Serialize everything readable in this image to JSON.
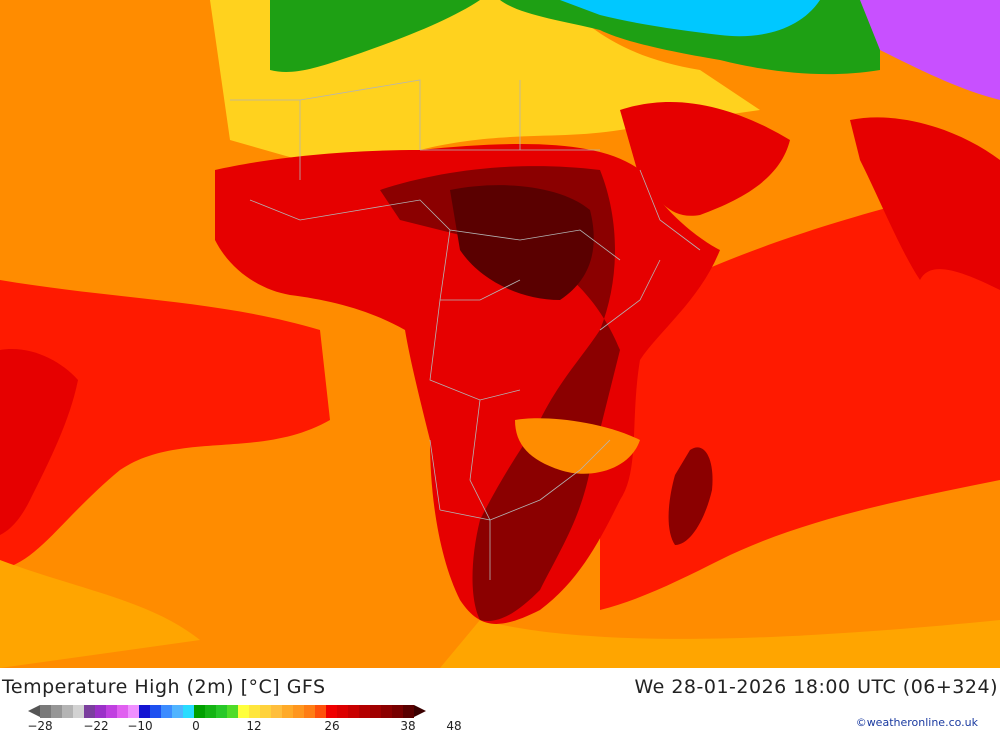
{
  "map": {
    "region": "Africa",
    "colors": {
      "ocean_warm": "#ff8c00",
      "ocean_orange": "#ffa500",
      "ocean_red": "#ff1a00",
      "land_red": "#e60000",
      "land_dark": "#8b0000",
      "land_darkest": "#5a0000",
      "desert_yellow": "#ffd21e",
      "green": "#1ea014",
      "cyan": "#00c8ff",
      "purple": "#c850ff",
      "border": "#b4b4b4"
    }
  },
  "footer": {
    "title": "Temperature High (2m) [°C] GFS",
    "datetime": "We 28-01-2026 18:00 UTC (06+324)",
    "credit": "©weatheronline.co.uk"
  },
  "legend": {
    "swatches": [
      "#7a7a7a",
      "#969696",
      "#b4b4b4",
      "#d2d2d2",
      "#7b3f9e",
      "#9b30c8",
      "#c040e0",
      "#e060f0",
      "#f090ff",
      "#1414d2",
      "#1e50f0",
      "#3c8cff",
      "#50b4ff",
      "#28dcff",
      "#00a000",
      "#14b414",
      "#28c828",
      "#50dc28",
      "#ffff3c",
      "#ffe63c",
      "#ffd23c",
      "#ffbe3c",
      "#ffaa28",
      "#ff961e",
      "#ff7d14",
      "#ff500a",
      "#f00000",
      "#dc0000",
      "#c80000",
      "#b40000",
      "#a00000",
      "#8c0000",
      "#780000",
      "#5a0000"
    ],
    "ticks": [
      "-28",
      "-22",
      "-10",
      "0",
      "12",
      "26",
      "38",
      "48"
    ]
  }
}
